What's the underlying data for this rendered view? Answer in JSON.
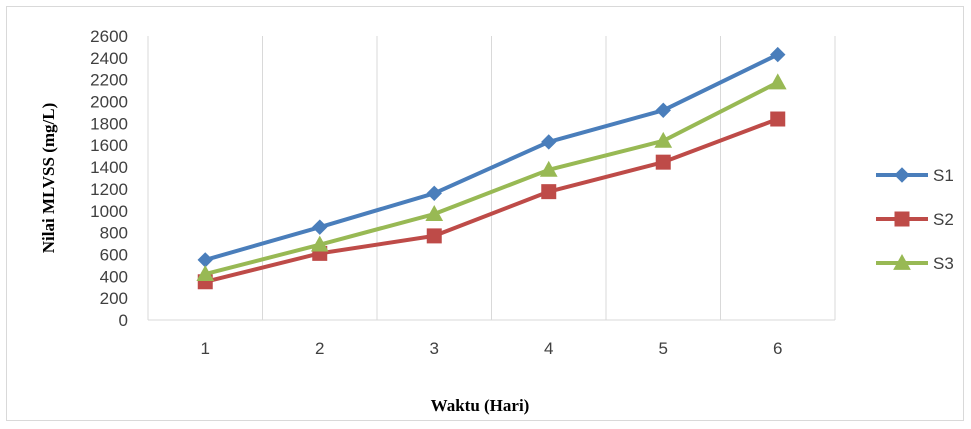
{
  "chart_data": {
    "type": "line",
    "categories": [
      "1",
      "2",
      "3",
      "4",
      "5",
      "6"
    ],
    "series": [
      {
        "name": "S1",
        "values": [
          550,
          850,
          1160,
          1630,
          1920,
          2430
        ],
        "color": "#4A7EBB",
        "marker": "diamond"
      },
      {
        "name": "S2",
        "values": [
          350,
          610,
          770,
          1175,
          1445,
          1840
        ],
        "color": "#BE4B48",
        "marker": "square"
      },
      {
        "name": "S3",
        "values": [
          420,
          690,
          970,
          1375,
          1640,
          2175
        ],
        "color": "#98B954",
        "marker": "triangle"
      }
    ],
    "xlabel": "Waktu (Hari)",
    "ylabel": "Nilai MLVSS (mg/L)",
    "ylim": [
      0,
      2600
    ],
    "yticks": [
      0,
      200,
      400,
      600,
      800,
      1000,
      1200,
      1400,
      1600,
      1800,
      2000,
      2200,
      2400,
      2600
    ],
    "grid": "vertical",
    "legend_position": "right"
  }
}
